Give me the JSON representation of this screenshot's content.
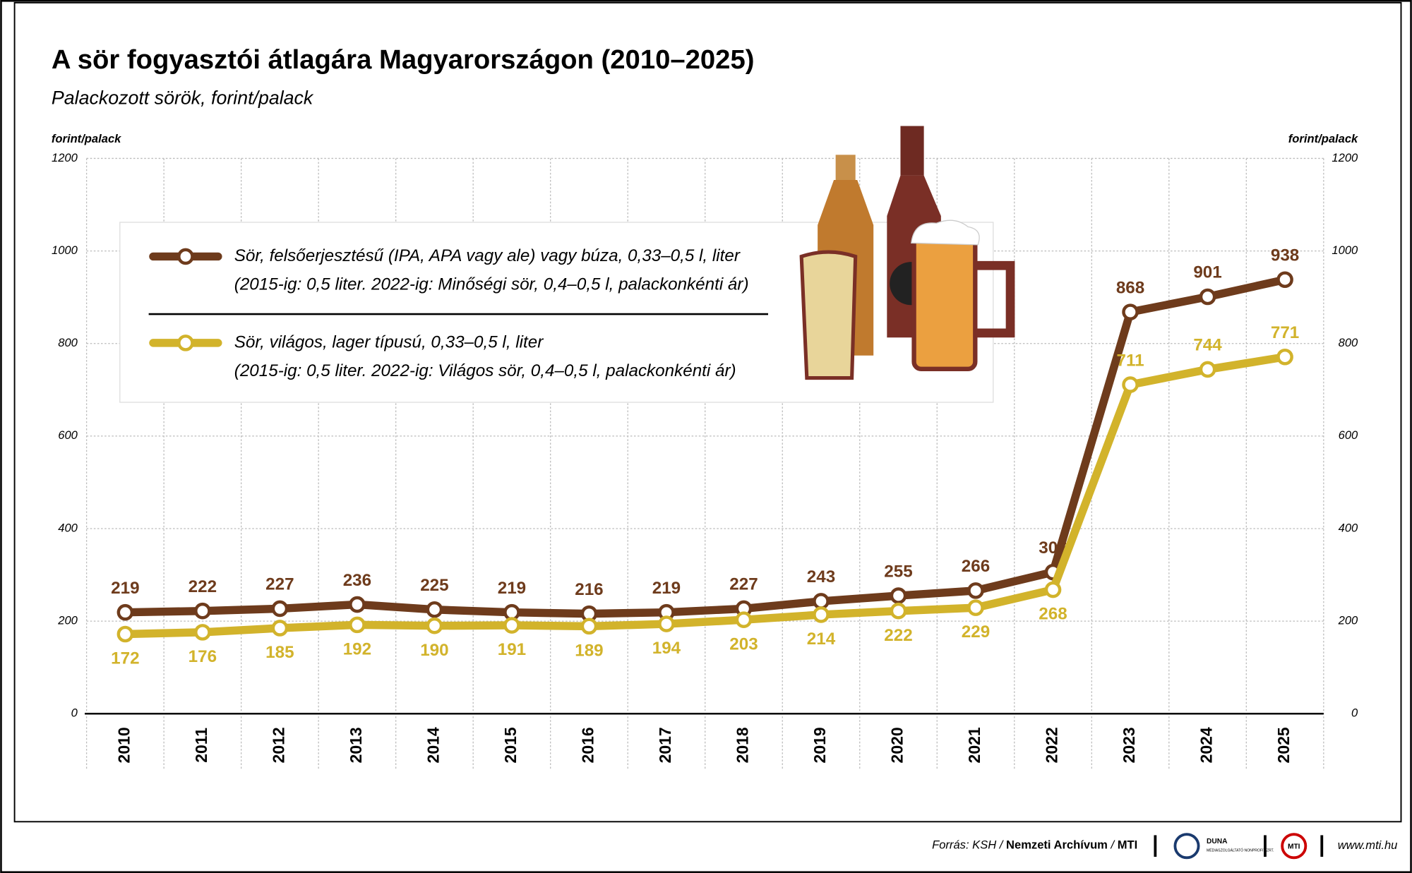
{
  "chart_data": {
    "type": "line",
    "title": "A sör fogyasztói átlagára Magyarországon (2010–2025)",
    "subtitle": "Palackozott sörök, forint/palack",
    "y_label": "forint/palack",
    "y2_label": "forint/palack",
    "categories": [
      "2010",
      "2011",
      "2012",
      "2013",
      "2014",
      "2015",
      "2016",
      "2017",
      "2018",
      "2019",
      "2020",
      "2021",
      "2022",
      "2023",
      "2024",
      "2025"
    ],
    "series": [
      {
        "name": "Sör, felsőerjesztésű (IPA, APA vagy ale) vagy búza, 0,33–0,5 l, liter",
        "note": "(2015-ig: 0,5 liter. 2022-ig: Minőségi sör, 0,4–0,5 l, palackonkénti ár)",
        "color": "#6e3b1c",
        "values": [
          219,
          222,
          227,
          236,
          225,
          219,
          216,
          219,
          227,
          243,
          255,
          266,
          306,
          868,
          901,
          938
        ]
      },
      {
        "name": "Sör, világos, lager típusú, 0,33–0,5 l, liter",
        "note": "(2015-ig: 0,5 liter. 2022-ig: Világos sör, 0,4–0,5 l, palackonkénti ár)",
        "color": "#d2b32b",
        "values": [
          172,
          176,
          185,
          192,
          190,
          191,
          189,
          194,
          203,
          214,
          222,
          229,
          268,
          711,
          744,
          771
        ]
      }
    ],
    "ylim": [
      0,
      1200
    ],
    "yticks": [
      0,
      200,
      400,
      600,
      800,
      1000,
      1200
    ],
    "y2lim": [
      0,
      1200
    ],
    "y2ticks": [
      0,
      200,
      400,
      600,
      800,
      1000,
      1200
    ],
    "grid": true
  },
  "footer": {
    "source_prefix": "Forrás: KSH /",
    "source_archive": "Nemzeti Archívum",
    "source_sep": "/",
    "source_mti": "MTI",
    "logo_duna": "DUNA",
    "logo_duna_sub": "MÉDIASZOLGÁLTATÓ NONPROFIT ZRT.",
    "logo_mti": "MTI",
    "url": "www.mti.hu"
  }
}
